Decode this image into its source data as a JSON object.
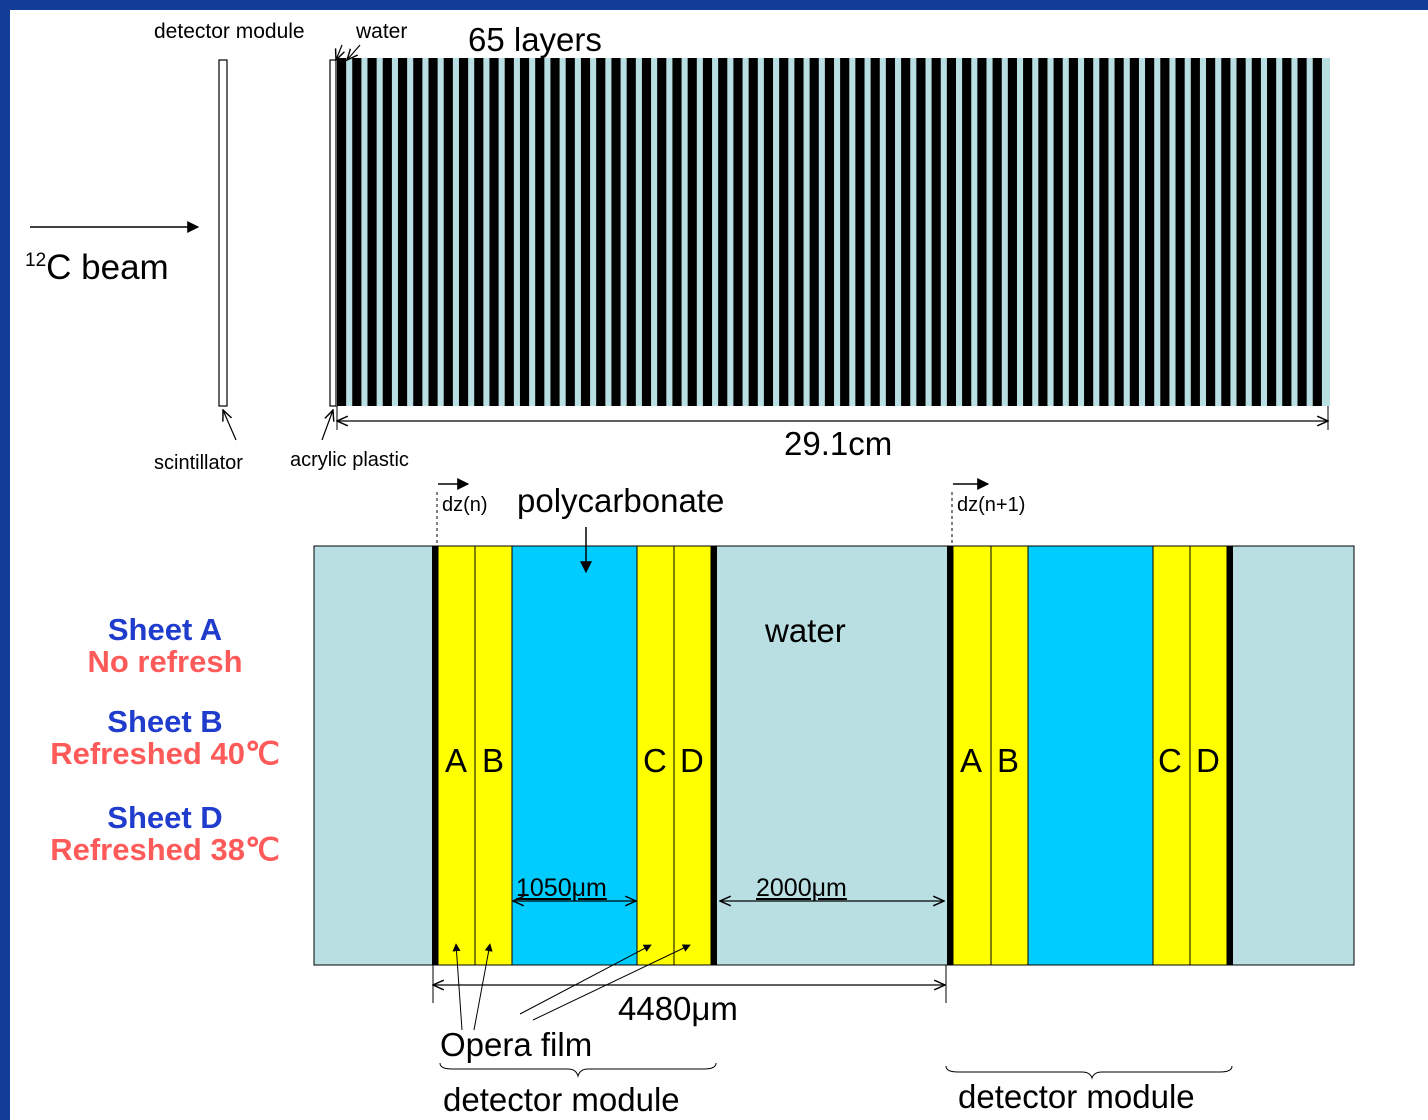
{
  "colors": {
    "frame": "#123c96",
    "water": "#b9dfe2",
    "layer_black": "#000000",
    "film_yellow": "#ffff00",
    "polycarbonate": "#00ccff",
    "sheet_title": "#1f3ccc",
    "sheet_state": "#ff5a5a"
  },
  "top": {
    "labels": {
      "detector_module": "detector module",
      "water": "water",
      "layers": "65 layers",
      "beam_sup": "12",
      "beam": "C beam",
      "scintillator": "scintillator",
      "acrylic": "acrylic plastic",
      "length": "29.1cm"
    },
    "layer_count": 65
  },
  "bottom": {
    "labels": {
      "dz_n": "dz(n)",
      "dz_n1": "dz(n+1)",
      "polycarbonate": "polycarbonate",
      "water": "water",
      "dim_poly": "1050μm",
      "dim_water": "2000μm",
      "dim_total": "4480μm",
      "opera_film": "Opera film",
      "detector_module_left": "detector module",
      "detector_module_right": "detector module"
    },
    "film_letters": [
      "A",
      "B",
      "C",
      "D"
    ]
  },
  "sheets": [
    {
      "name": "Sheet A",
      "state": "No refresh"
    },
    {
      "name": "Sheet B",
      "state": "Refreshed 40℃"
    },
    {
      "name": "Sheet D",
      "state": "Refreshed 38℃"
    }
  ]
}
